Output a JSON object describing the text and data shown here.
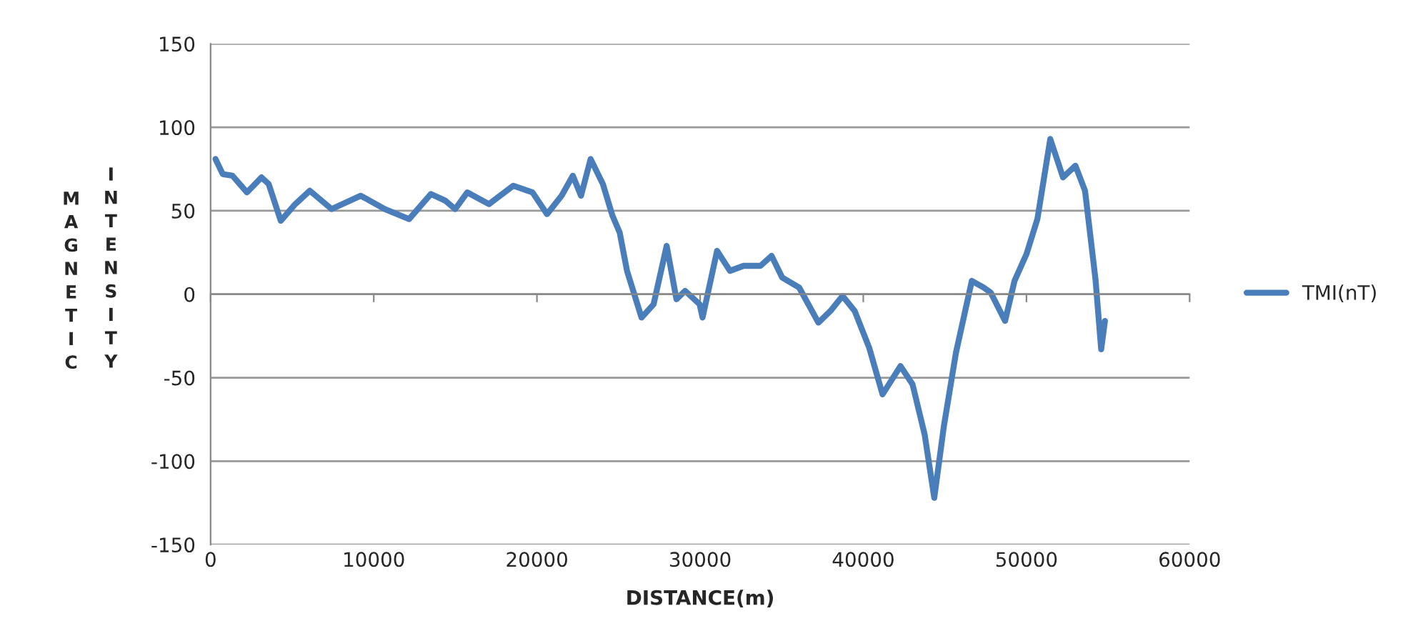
{
  "chart_data": {
    "type": "line",
    "xlabel": "DISTANCE(m)",
    "ylabel": "MAGNETIC INTENSITY",
    "xlim": [
      0,
      60000
    ],
    "xticks": [
      0,
      10000,
      20000,
      30000,
      40000,
      50000,
      60000
    ],
    "ylim": [
      -150,
      150
    ],
    "yticks": [
      -150,
      -100,
      -50,
      0,
      50,
      100,
      150
    ],
    "grid": "y",
    "legend": "right",
    "line_style": "solid",
    "marker": "none",
    "series": [
      {
        "name": "TMI(nT)",
        "color": "#4a7ebb",
        "x": [
          300,
          740,
          1340,
          2230,
          3120,
          3560,
          4300,
          5190,
          6080,
          7420,
          9200,
          10680,
          12170,
          13500,
          14390,
          14990,
          15730,
          17060,
          18550,
          19730,
          20620,
          21510,
          22200,
          22700,
          23290,
          24040,
          24630,
          25070,
          25520,
          26410,
          27150,
          27950,
          28550,
          29080,
          29970,
          30150,
          31040,
          31830,
          32660,
          33700,
          34380,
          35030,
          36070,
          37250,
          37990,
          38730,
          39470,
          40360,
          41180,
          42280,
          43020,
          43760,
          44350,
          44940,
          45680,
          46650,
          47380,
          47810,
          48690,
          49270,
          50000,
          50670,
          51460,
          52240,
          53000,
          53590,
          54230,
          54580,
          54810
        ],
        "values": [
          81,
          72,
          71,
          61,
          70,
          66,
          44,
          54,
          62,
          51,
          59,
          51,
          45,
          60,
          56,
          51,
          61,
          54,
          65,
          61,
          48,
          59,
          71,
          59,
          81,
          66,
          47,
          37,
          14,
          -14,
          -6,
          29,
          -3,
          2,
          -6,
          -14,
          26,
          14,
          17,
          17,
          23,
          10,
          4,
          -17,
          -10,
          -1,
          -10,
          -32,
          -60,
          -43,
          -54,
          -84,
          -122,
          -79,
          -35,
          8,
          4,
          1,
          -16,
          8,
          24,
          45,
          93,
          70,
          77,
          62,
          9,
          -33,
          -16
        ]
      }
    ]
  }
}
